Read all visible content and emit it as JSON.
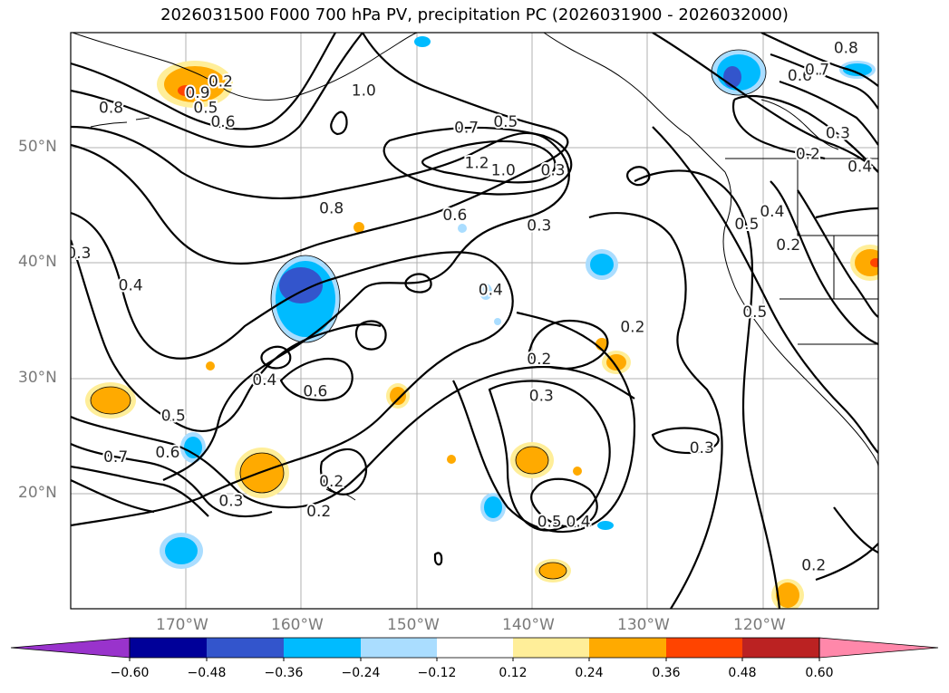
{
  "title": "2026031500 F000 700 hPa PV, precipitation PC (2026031900 - 2026032000)",
  "lat_labels": [
    "50°N",
    "40°N",
    "30°N",
    "20°N"
  ],
  "lon_labels": [
    "170°W",
    "160°W",
    "150°W",
    "140°W",
    "130°W",
    "120°W"
  ],
  "contour_labels": [
    {
      "text": "0.2",
      "lon": -167,
      "lat": 55.8
    },
    {
      "text": "0.5",
      "lon": -168.3,
      "lat": 53.5
    },
    {
      "text": "0.6",
      "lon": -166.8,
      "lat": 52.3
    },
    {
      "text": "0.9",
      "lon": -169,
      "lat": 54.8
    },
    {
      "text": "0.8",
      "lon": -176.5,
      "lat": 53.5
    },
    {
      "text": "1.0",
      "lon": -154.6,
      "lat": 55
    },
    {
      "text": "0.7",
      "lon": -145.7,
      "lat": 51.8
    },
    {
      "text": "0.5",
      "lon": -142.3,
      "lat": 52.3
    },
    {
      "text": "1.2",
      "lon": -144.8,
      "lat": 48.7
    },
    {
      "text": "1.0",
      "lon": -142.5,
      "lat": 48.1
    },
    {
      "text": "0.8",
      "lon": -157.4,
      "lat": 44.8
    },
    {
      "text": "0.6",
      "lon": -146.7,
      "lat": 44.2
    },
    {
      "text": "0.3",
      "lon": -138.2,
      "lat": 48.1
    },
    {
      "text": "0.3",
      "lon": -139.4,
      "lat": 43.3
    },
    {
      "text": "0.3",
      "lon": -179.3,
      "lat": 40.9
    },
    {
      "text": "0.4",
      "lon": -174.8,
      "lat": 38.1
    },
    {
      "text": "0.4",
      "lon": -143.6,
      "lat": 37.7
    },
    {
      "text": "0.2",
      "lon": -131.3,
      "lat": 34.5
    },
    {
      "text": "0.2",
      "lon": -139.4,
      "lat": 31.7
    },
    {
      "text": "0.4",
      "lon": -163.2,
      "lat": 29.9
    },
    {
      "text": "0.6",
      "lon": -158.8,
      "lat": 28.9
    },
    {
      "text": "0.3",
      "lon": -139.2,
      "lat": 28.5
    },
    {
      "text": "0.5",
      "lon": -171.1,
      "lat": 26.8
    },
    {
      "text": "0.6",
      "lon": -171.6,
      "lat": 23.6
    },
    {
      "text": "0.7",
      "lon": -176.1,
      "lat": 23.2
    },
    {
      "text": "0.3",
      "lon": -166.1,
      "lat": 19.4
    },
    {
      "text": "0.2",
      "lon": -158.5,
      "lat": 18.5
    },
    {
      "text": "0.2",
      "lon": -157.4,
      "lat": 21.1
    },
    {
      "text": "0.3",
      "lon": -125.3,
      "lat": 24
    },
    {
      "text": "0.5",
      "lon": -138.5,
      "lat": 17.6
    },
    {
      "text": "0.4",
      "lon": -136,
      "lat": 17.6
    },
    {
      "text": "0.2",
      "lon": -115.6,
      "lat": 13.8
    },
    {
      "text": "0.6",
      "lon": -116.8,
      "lat": 56.3
    },
    {
      "text": "0.7",
      "lon": -115.3,
      "lat": 56.8
    },
    {
      "text": "0.8",
      "lon": -112.8,
      "lat": 58.7
    },
    {
      "text": "0.3",
      "lon": -113.5,
      "lat": 51.3
    },
    {
      "text": "0.4",
      "lon": -111.6,
      "lat": 48.4
    },
    {
      "text": "0.2",
      "lon": -116.1,
      "lat": 49.5
    },
    {
      "text": "0.5",
      "lon": -121.4,
      "lat": 43.4
    },
    {
      "text": "0.4",
      "lon": -119.2,
      "lat": 44.5
    },
    {
      "text": "0.2",
      "lon": -117.8,
      "lat": 41.6
    },
    {
      "text": "0.5",
      "lon": -120.7,
      "lat": 35.8
    }
  ],
  "colorbar": {
    "tick_labels": [
      "−0.60",
      "−0.48",
      "−0.36",
      "−0.24",
      "−0.12",
      "0.12",
      "0.24",
      "0.36",
      "0.48",
      "0.60"
    ],
    "colors": [
      "#9933cc",
      "#000099",
      "#3355cc",
      "#00bbff",
      "#aaddff",
      "#ffffff",
      "#ffee99",
      "#ffaa00",
      "#ff4400",
      "#bb2222",
      "#ff88aa"
    ]
  },
  "map_extent": {
    "lon_min": -180,
    "lon_max": -110,
    "lat_min": 10,
    "lat_max": 60
  }
}
